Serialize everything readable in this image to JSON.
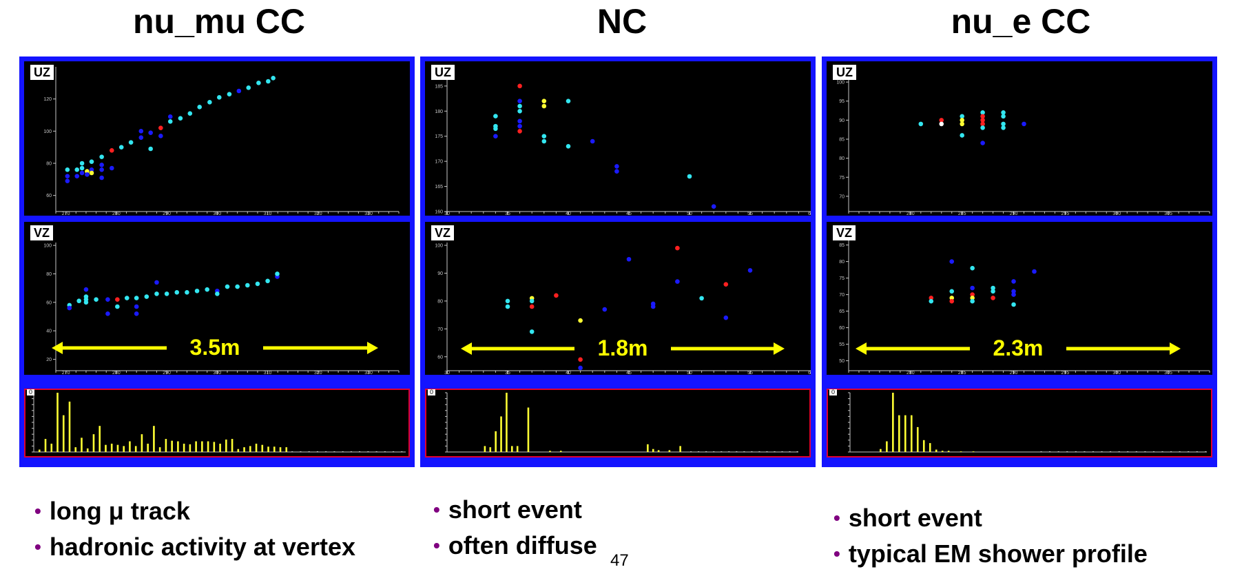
{
  "columns": [
    {
      "title": "nu_mu CC",
      "bullets": [
        "long μ  track",
        "hadronic activity at vertex"
      ],
      "length_label": "3.5m"
    },
    {
      "title": "NC",
      "bullets": [
        "short event",
        "often diffuse"
      ],
      "length_label": "1.8m"
    },
    {
      "title": "nu_e CC",
      "bullets": [
        "short event",
        "typical EM shower profile"
      ],
      "length_label": "2.3m"
    }
  ],
  "page_number": "47",
  "hist_label": "0",
  "colors": {
    "frame": "#1414ff",
    "plot_bg": "#000000",
    "axis": "#c8c8c8",
    "hist_bar": "#ffff33",
    "hist_border": "#e00030",
    "arrow": "#ffff00",
    "bullet": "#800080"
  },
  "chart_data": [
    {
      "type": "scatter",
      "panel": 0,
      "view": "UZ",
      "xlim": [
        268,
        336
      ],
      "ylim": [
        50,
        140
      ],
      "xticks": [
        270,
        280,
        290,
        300,
        310,
        320,
        330
      ],
      "yticks": [
        60,
        80,
        100,
        120
      ],
      "points": [
        [
          270.3,
          76,
          "c"
        ],
        [
          270.3,
          72,
          "b"
        ],
        [
          270.3,
          69,
          "b"
        ],
        [
          272.2,
          76,
          "c"
        ],
        [
          272.2,
          72,
          "b"
        ],
        [
          273.2,
          80,
          "c"
        ],
        [
          273.2,
          77,
          "c"
        ],
        [
          273.2,
          74,
          "b"
        ],
        [
          274.2,
          75,
          "y"
        ],
        [
          274.2,
          73,
          "b"
        ],
        [
          275.1,
          81,
          "c"
        ],
        [
          275.1,
          76,
          "b"
        ],
        [
          275.1,
          74,
          "y"
        ],
        [
          277.1,
          84,
          "c"
        ],
        [
          277.1,
          79,
          "b"
        ],
        [
          277.1,
          76,
          "b"
        ],
        [
          277.1,
          71,
          "b"
        ],
        [
          279.1,
          88,
          "r"
        ],
        [
          279.1,
          77,
          "b"
        ],
        [
          281,
          90,
          "c"
        ],
        [
          282.9,
          93,
          "c"
        ],
        [
          284.9,
          96,
          "b"
        ],
        [
          284.9,
          100,
          "b"
        ],
        [
          286.8,
          99,
          "b"
        ],
        [
          286.8,
          89,
          "c"
        ],
        [
          288.8,
          102,
          "r"
        ],
        [
          288.8,
          97,
          "b"
        ],
        [
          290.7,
          106,
          "c"
        ],
        [
          290.7,
          109,
          "b"
        ],
        [
          292.7,
          108,
          "c"
        ],
        [
          294.6,
          111,
          "c"
        ],
        [
          296.5,
          115,
          "c"
        ],
        [
          298.5,
          118,
          "c"
        ],
        [
          300.4,
          121,
          "c"
        ],
        [
          302.4,
          123,
          "c"
        ],
        [
          304.3,
          125,
          "b"
        ],
        [
          306.2,
          127,
          "c"
        ],
        [
          308.2,
          130,
          "c"
        ],
        [
          310.1,
          131,
          "c"
        ],
        [
          311.1,
          133,
          "c"
        ]
      ]
    },
    {
      "type": "scatter",
      "panel": 0,
      "view": "VZ",
      "xlim": [
        268,
        336
      ],
      "ylim": [
        12,
        102
      ],
      "xticks": [
        270,
        280,
        290,
        300,
        310,
        320,
        330
      ],
      "yticks": [
        20,
        40,
        60,
        80,
        100
      ],
      "points": [
        [
          270.7,
          58,
          "c"
        ],
        [
          270.7,
          56,
          "b"
        ],
        [
          272.6,
          61,
          "c"
        ],
        [
          274,
          69,
          "b"
        ],
        [
          274,
          64,
          "c"
        ],
        [
          274,
          62,
          "c"
        ],
        [
          274,
          60,
          "c"
        ],
        [
          276,
          62,
          "c"
        ],
        [
          278.3,
          52,
          "b"
        ],
        [
          278.3,
          62,
          "b"
        ],
        [
          280.2,
          62,
          "r"
        ],
        [
          280.2,
          57,
          "c"
        ],
        [
          282.1,
          63,
          "c"
        ],
        [
          284,
          63,
          "c"
        ],
        [
          284,
          57,
          "b"
        ],
        [
          284,
          52,
          "b"
        ],
        [
          286,
          64,
          "c"
        ],
        [
          288,
          66,
          "c"
        ],
        [
          288,
          74,
          "b"
        ],
        [
          290,
          66,
          "c"
        ],
        [
          292,
          67,
          "c"
        ],
        [
          294,
          67,
          "c"
        ],
        [
          296,
          68,
          "c"
        ],
        [
          298,
          69,
          "c"
        ],
        [
          300,
          68,
          "b"
        ],
        [
          300,
          66,
          "c"
        ],
        [
          302,
          71,
          "c"
        ],
        [
          304,
          71,
          "c"
        ],
        [
          306,
          72,
          "c"
        ],
        [
          308,
          73,
          "c"
        ],
        [
          310,
          75,
          "c"
        ],
        [
          311.9,
          78,
          "b"
        ],
        [
          311.9,
          80,
          "c"
        ]
      ]
    },
    {
      "type": "bar",
      "panel": 0,
      "view": "charge",
      "ylim": [
        0,
        100
      ],
      "values": [
        4,
        22,
        14,
        100,
        62,
        85,
        8,
        24,
        6,
        30,
        44,
        12,
        14,
        12,
        10,
        18,
        10,
        30,
        14,
        44,
        8,
        22,
        19,
        18,
        14,
        13,
        18,
        18,
        18,
        17,
        14,
        21,
        22,
        5,
        8,
        10,
        14,
        12,
        9,
        9,
        8,
        8
      ]
    },
    {
      "type": "scatter",
      "panel": 1,
      "view": "UZ",
      "xlim": [
        30,
        60
      ],
      "ylim": [
        160,
        188
      ],
      "xticks": [
        30,
        35,
        40,
        45,
        50,
        55,
        60
      ],
      "yticks": [
        160,
        165,
        170,
        175,
        180,
        185
      ],
      "points": [
        [
          34,
          179,
          "c"
        ],
        [
          34,
          177,
          "c"
        ],
        [
          34,
          176.5,
          "c"
        ],
        [
          34,
          175,
          "b"
        ],
        [
          36,
          185,
          "r"
        ],
        [
          36,
          182,
          "b"
        ],
        [
          36,
          181,
          "c"
        ],
        [
          36,
          180,
          "c"
        ],
        [
          36,
          178,
          "b"
        ],
        [
          36,
          177,
          "b"
        ],
        [
          36,
          176,
          "r"
        ],
        [
          38,
          182,
          "y"
        ],
        [
          38,
          181,
          "y"
        ],
        [
          38,
          175,
          "c"
        ],
        [
          38,
          174,
          "c"
        ],
        [
          40,
          182,
          "c"
        ],
        [
          40,
          173,
          "c"
        ],
        [
          42,
          174,
          "b"
        ],
        [
          44,
          169,
          "b"
        ],
        [
          44,
          168,
          "b"
        ],
        [
          50,
          167,
          "c"
        ],
        [
          52,
          161,
          "b"
        ]
      ]
    },
    {
      "type": "scatter",
      "panel": 1,
      "view": "VZ",
      "xlim": [
        30,
        60
      ],
      "ylim": [
        55,
        101
      ],
      "xticks": [
        30,
        35,
        40,
        45,
        50,
        55,
        60
      ],
      "yticks": [
        60,
        70,
        80,
        90,
        100
      ],
      "points": [
        [
          35,
          80,
          "c"
        ],
        [
          35,
          78,
          "c"
        ],
        [
          37,
          81,
          "y"
        ],
        [
          37,
          80,
          "c"
        ],
        [
          37,
          78,
          "r"
        ],
        [
          37,
          69,
          "c"
        ],
        [
          39,
          82,
          "r"
        ],
        [
          41,
          73,
          "y"
        ],
        [
          41,
          59,
          "r"
        ],
        [
          41,
          56,
          "b"
        ],
        [
          43,
          77,
          "b"
        ],
        [
          45,
          95,
          "b"
        ],
        [
          47,
          79,
          "b"
        ],
        [
          47,
          78,
          "b"
        ],
        [
          49,
          99,
          "r"
        ],
        [
          49,
          87,
          "b"
        ],
        [
          51,
          81,
          "c"
        ],
        [
          53,
          86,
          "r"
        ],
        [
          53,
          74,
          "b"
        ],
        [
          55,
          91,
          "b"
        ]
      ]
    },
    {
      "type": "bar",
      "panel": 1,
      "view": "charge",
      "ylim": [
        0,
        100
      ],
      "values": [
        0,
        0,
        0,
        0,
        0,
        0,
        10,
        8,
        35,
        60,
        100,
        10,
        10,
        0,
        75,
        0,
        0,
        0,
        2,
        0,
        2,
        0,
        0,
        0,
        0,
        0,
        0,
        0,
        0,
        0,
        0,
        0,
        0,
        0,
        0,
        0,
        13,
        5,
        3,
        0,
        3,
        0,
        10,
        0
      ]
    },
    {
      "type": "scatter",
      "panel": 2,
      "view": "UZ",
      "xlim": [
        274,
        309
      ],
      "ylim": [
        66,
        104
      ],
      "xticks": [
        280,
        285,
        290,
        295,
        300,
        305
      ],
      "yticks": [
        70,
        75,
        80,
        85,
        90,
        95,
        100
      ],
      "points": [
        [
          281,
          89,
          "c"
        ],
        [
          283,
          90,
          "r"
        ],
        [
          283,
          89,
          "w"
        ],
        [
          285,
          91,
          "c"
        ],
        [
          285,
          90,
          "y"
        ],
        [
          285,
          89,
          "y"
        ],
        [
          285,
          86,
          "c"
        ],
        [
          287,
          92,
          "c"
        ],
        [
          287,
          91,
          "r"
        ],
        [
          287,
          90,
          "r"
        ],
        [
          287,
          89,
          "r"
        ],
        [
          287,
          88,
          "c"
        ],
        [
          287,
          84,
          "b"
        ],
        [
          289,
          92,
          "c"
        ],
        [
          289,
          91,
          "c"
        ],
        [
          289,
          89,
          "c"
        ],
        [
          289,
          88,
          "c"
        ],
        [
          291,
          89,
          "b"
        ]
      ]
    },
    {
      "type": "scatter",
      "panel": 2,
      "view": "VZ",
      "xlim": [
        274,
        309
      ],
      "ylim": [
        47,
        87
      ],
      "xticks": [
        280,
        285,
        290,
        295,
        300,
        305
      ],
      "yticks": [
        50,
        55,
        60,
        65,
        70,
        75,
        80,
        85
      ],
      "points": [
        [
          282,
          69,
          "r"
        ],
        [
          282,
          68,
          "c"
        ],
        [
          284,
          80,
          "b"
        ],
        [
          284,
          71,
          "c"
        ],
        [
          284,
          69,
          "y"
        ],
        [
          284,
          68,
          "r"
        ],
        [
          286,
          78,
          "c"
        ],
        [
          286,
          72,
          "b"
        ],
        [
          286,
          70,
          "r"
        ],
        [
          286,
          69,
          "y"
        ],
        [
          286,
          68,
          "c"
        ],
        [
          288,
          72,
          "c"
        ],
        [
          288,
          71,
          "c"
        ],
        [
          288,
          69,
          "r"
        ],
        [
          290,
          74,
          "b"
        ],
        [
          290,
          71,
          "b"
        ],
        [
          290,
          70,
          "b"
        ],
        [
          290,
          67,
          "c"
        ],
        [
          292,
          77,
          "b"
        ]
      ]
    },
    {
      "type": "bar",
      "panel": 2,
      "view": "charge",
      "ylim": [
        0,
        100
      ],
      "values": [
        0,
        0,
        0,
        0,
        5,
        18,
        100,
        62,
        62,
        62,
        42,
        20,
        15,
        4,
        2,
        2,
        0,
        1,
        0,
        1,
        0,
        0,
        0,
        0,
        0,
        0,
        0,
        0,
        0,
        0
      ]
    }
  ]
}
